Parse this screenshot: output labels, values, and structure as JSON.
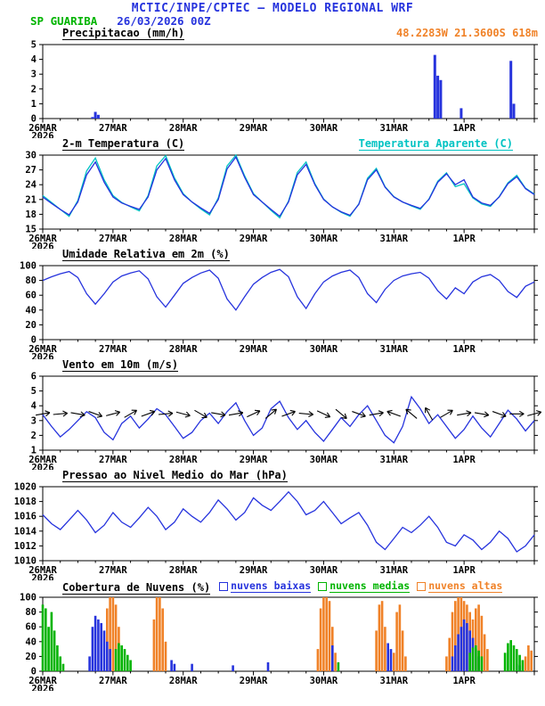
{
  "palette": {
    "blue": "#2633dd",
    "cyan": "#00c3c3",
    "green": "#00b400",
    "orange": "#f08228",
    "black": "#000000"
  },
  "header": {
    "title": "MCTIC/INPE/CPTEC — MODELO REGIONAL WRF",
    "station": "SP GUARIBA",
    "run": "26/03/2026 00Z",
    "coordinates": "48.2283W 21.3600S 618m"
  },
  "time_axis": {
    "t_end": 168,
    "ticks": [
      {
        "t": 0,
        "label": "26MAR",
        "sub": "2026"
      },
      {
        "t": 24,
        "label": "27MAR"
      },
      {
        "t": 48,
        "label": "28MAR"
      },
      {
        "t": 72,
        "label": "29MAR"
      },
      {
        "t": 96,
        "label": "30MAR"
      },
      {
        "t": 120,
        "label": "31MAR"
      },
      {
        "t": 144,
        "label": "1APR"
      }
    ]
  },
  "chart_data": [
    {
      "name": "precipitation",
      "type": "bar",
      "title": "Precipitacao (mm/h)",
      "ylim": [
        0,
        5
      ],
      "yticks": [
        0,
        1,
        2,
        3,
        4,
        5
      ],
      "color": "blue",
      "bars": [
        [
          17,
          0.1
        ],
        [
          18,
          0.45
        ],
        [
          19,
          0.25
        ],
        [
          134,
          4.3
        ],
        [
          135,
          2.9
        ],
        [
          136,
          2.6
        ],
        [
          143,
          0.7
        ],
        [
          160,
          3.9
        ],
        [
          161,
          1.0
        ]
      ]
    },
    {
      "name": "temperature-2m",
      "type": "line",
      "title": "2-m Temperatura (C)",
      "right_label": "Temperatura Aparente (C)",
      "ylim": [
        15,
        30
      ],
      "yticks": [
        15,
        18,
        21,
        24,
        27,
        30
      ],
      "t_step": 3,
      "series": [
        {
          "name": "Temperatura Aparente (C)",
          "color": "cyan",
          "values": [
            21.8,
            20.4,
            19.0,
            17.6,
            20.8,
            26.8,
            29.4,
            25.0,
            21.8,
            20.4,
            19.5,
            18.7,
            21.8,
            27.8,
            29.9,
            25.4,
            22.2,
            20.5,
            19.1,
            17.9,
            21.3,
            27.8,
            30.0,
            25.8,
            22.2,
            20.5,
            18.8,
            17.3,
            20.7,
            26.5,
            28.6,
            24.2,
            21.1,
            19.5,
            18.4,
            17.6,
            20.1,
            25.3,
            27.3,
            23.6,
            21.6,
            20.5,
            19.7,
            19.0,
            21.1,
            24.7,
            26.4,
            23.6,
            24.2,
            21.3,
            20.1,
            19.6,
            21.6,
            24.4,
            25.9,
            23.3,
            22.1
          ]
        },
        {
          "name": "2-m Temperatura (C)",
          "color": "blue",
          "values": [
            21.5,
            20.2,
            19.0,
            17.9,
            20.5,
            26.0,
            28.6,
            24.5,
            21.5,
            20.3,
            19.6,
            19.0,
            21.5,
            27.0,
            29.3,
            25.0,
            22.0,
            20.5,
            19.3,
            18.2,
            21.0,
            27.2,
            29.6,
            25.5,
            22.0,
            20.5,
            19.0,
            17.6,
            20.5,
            26.0,
            28.1,
            24.0,
            21.0,
            19.5,
            18.5,
            17.8,
            20.0,
            25.0,
            27.0,
            23.5,
            21.5,
            20.5,
            19.8,
            19.2,
            21.0,
            24.5,
            26.2,
            24.0,
            25.0,
            21.5,
            20.3,
            19.8,
            21.5,
            24.2,
            25.6,
            23.2,
            22.0
          ]
        }
      ]
    },
    {
      "name": "relative-humidity-2m",
      "type": "line",
      "title": "Umidade Relativa em 2m (%)",
      "ylim": [
        0,
        100
      ],
      "yticks": [
        0,
        20,
        40,
        60,
        80,
        100
      ],
      "t_step": 3,
      "series": [
        {
          "name": "Umidade Relativa",
          "color": "blue",
          "values": [
            80,
            85,
            89,
            92,
            84,
            62,
            48,
            62,
            78,
            86,
            90,
            93,
            82,
            58,
            44,
            60,
            76,
            84,
            90,
            94,
            83,
            55,
            40,
            58,
            75,
            84,
            91,
            95,
            85,
            58,
            42,
            62,
            78,
            86,
            91,
            94,
            84,
            62,
            50,
            68,
            80,
            86,
            89,
            91,
            83,
            66,
            55,
            70,
            62,
            78,
            85,
            88,
            80,
            65,
            57,
            72,
            78
          ]
        }
      ]
    },
    {
      "name": "wind-10m",
      "type": "line",
      "title": "Vento em 10m (m/s)",
      "ylim": [
        1,
        6
      ],
      "yticks": [
        1,
        2,
        3,
        4,
        5,
        6
      ],
      "t_step": 3,
      "series": [
        {
          "name": "Velocidade do vento",
          "color": "blue",
          "values": [
            3.4,
            2.6,
            1.9,
            2.4,
            3.0,
            3.6,
            3.2,
            2.2,
            1.7,
            2.8,
            3.3,
            2.5,
            3.1,
            3.8,
            3.4,
            2.6,
            1.8,
            2.2,
            3.0,
            3.5,
            2.8,
            3.6,
            4.2,
            3.0,
            2.0,
            2.5,
            3.8,
            4.3,
            3.2,
            2.4,
            3.0,
            2.2,
            1.6,
            2.4,
            3.2,
            2.6,
            3.4,
            4.0,
            3.0,
            2.0,
            1.5,
            2.6,
            4.6,
            3.8,
            2.8,
            3.4,
            2.6,
            1.8,
            2.4,
            3.3,
            2.5,
            1.9,
            2.8,
            3.7,
            3.1,
            2.3,
            3.0
          ]
        }
      ],
      "barbs": {
        "y": 3.45,
        "t_step": 6,
        "angles": [
          10,
          5,
          -10,
          -20,
          15,
          30,
          20,
          5,
          -15,
          -30,
          -10,
          10,
          25,
          40,
          20,
          -5,
          -25,
          -40,
          -20,
          10,
          160,
          140,
          120,
          30,
          10,
          -10,
          -20,
          0,
          15
        ]
      }
    },
    {
      "name": "mslp",
      "type": "line",
      "title": "Pressao ao Nivel Medio do Mar (hPa)",
      "ylim": [
        1010,
        1020
      ],
      "yticks": [
        1010,
        1012,
        1014,
        1016,
        1018,
        1020
      ],
      "t_step": 3,
      "series": [
        {
          "name": "Pressao ao nivel medio do mar",
          "color": "blue",
          "values": [
            1016.2,
            1015.0,
            1014.2,
            1015.5,
            1016.8,
            1015.5,
            1013.8,
            1014.8,
            1016.5,
            1015.2,
            1014.5,
            1015.8,
            1017.2,
            1016.0,
            1014.2,
            1015.2,
            1017.0,
            1016.0,
            1015.2,
            1016.5,
            1018.2,
            1017.0,
            1015.5,
            1016.5,
            1018.5,
            1017.5,
            1016.8,
            1018.0,
            1019.3,
            1018.0,
            1016.2,
            1016.8,
            1018.0,
            1016.5,
            1015.0,
            1015.8,
            1016.5,
            1014.8,
            1012.5,
            1011.5,
            1013.0,
            1014.5,
            1013.8,
            1014.8,
            1016.0,
            1014.5,
            1012.5,
            1012.0,
            1013.5,
            1012.8,
            1011.5,
            1012.5,
            1014.0,
            1013.0,
            1011.2,
            1012.0,
            1013.5
          ]
        }
      ]
    },
    {
      "name": "cloud-cover",
      "type": "bar-multi",
      "title": "Cobertura de Nuvens (%)",
      "ylim": [
        0,
        100
      ],
      "yticks": [
        0,
        20,
        40,
        60,
        80,
        100
      ],
      "legend": [
        {
          "label": "nuvens baixas",
          "color": "blue"
        },
        {
          "label": "nuvens medias",
          "color": "green"
        },
        {
          "label": "nuvens altas",
          "color": "orange"
        }
      ],
      "draw_order": [
        2,
        0,
        1
      ],
      "series": [
        {
          "name": "nuvens baixas",
          "color": "blue",
          "data": [
            [
              16,
              20
            ],
            [
              17,
              60
            ],
            [
              18,
              75
            ],
            [
              19,
              70
            ],
            [
              20,
              65
            ],
            [
              21,
              55
            ],
            [
              22,
              40
            ],
            [
              23,
              30
            ],
            [
              44,
              15
            ],
            [
              45,
              10
            ],
            [
              51,
              10
            ],
            [
              65,
              8
            ],
            [
              77,
              12
            ],
            [
              99,
              35
            ],
            [
              118,
              38
            ],
            [
              119,
              30
            ],
            [
              140,
              20
            ],
            [
              141,
              35
            ],
            [
              142,
              50
            ],
            [
              143,
              60
            ],
            [
              144,
              70
            ],
            [
              145,
              65
            ],
            [
              146,
              55
            ],
            [
              147,
              45
            ],
            [
              148,
              30
            ],
            [
              149,
              20
            ],
            [
              162,
              10
            ],
            [
              163,
              8
            ]
          ]
        },
        {
          "name": "nuvens medias",
          "color": "green",
          "data": [
            [
              0,
              90
            ],
            [
              1,
              85
            ],
            [
              2,
              60
            ],
            [
              3,
              80
            ],
            [
              4,
              55
            ],
            [
              5,
              35
            ],
            [
              6,
              20
            ],
            [
              7,
              10
            ],
            [
              25,
              30
            ],
            [
              26,
              38
            ],
            [
              27,
              35
            ],
            [
              28,
              30
            ],
            [
              29,
              22
            ],
            [
              30,
              15
            ],
            [
              101,
              12
            ],
            [
              146,
              25
            ],
            [
              147,
              32
            ],
            [
              148,
              35
            ],
            [
              149,
              28
            ],
            [
              150,
              20
            ],
            [
              158,
              25
            ],
            [
              159,
              38
            ],
            [
              160,
              42
            ],
            [
              161,
              35
            ],
            [
              162,
              30
            ],
            [
              163,
              22
            ],
            [
              164,
              15
            ]
          ]
        },
        {
          "name": "nuvens altas",
          "color": "orange",
          "data": [
            [
              22,
              85
            ],
            [
              23,
              100
            ],
            [
              24,
              100
            ],
            [
              25,
              90
            ],
            [
              26,
              60
            ],
            [
              38,
              70
            ],
            [
              39,
              100
            ],
            [
              40,
              100
            ],
            [
              41,
              85
            ],
            [
              42,
              40
            ],
            [
              94,
              30
            ],
            [
              95,
              85
            ],
            [
              96,
              100
            ],
            [
              97,
              100
            ],
            [
              98,
              95
            ],
            [
              99,
              60
            ],
            [
              100,
              25
            ],
            [
              114,
              55
            ],
            [
              115,
              90
            ],
            [
              116,
              95
            ],
            [
              117,
              60
            ],
            [
              120,
              25
            ],
            [
              121,
              80
            ],
            [
              122,
              90
            ],
            [
              123,
              55
            ],
            [
              124,
              20
            ],
            [
              138,
              20
            ],
            [
              139,
              45
            ],
            [
              140,
              80
            ],
            [
              141,
              95
            ],
            [
              142,
              100
            ],
            [
              143,
              100
            ],
            [
              144,
              95
            ],
            [
              145,
              90
            ],
            [
              146,
              80
            ],
            [
              147,
              70
            ],
            [
              148,
              85
            ],
            [
              149,
              90
            ],
            [
              150,
              75
            ],
            [
              151,
              50
            ],
            [
              152,
              30
            ],
            [
              165,
              20
            ],
            [
              166,
              35
            ],
            [
              167,
              28
            ]
          ]
        }
      ]
    }
  ]
}
